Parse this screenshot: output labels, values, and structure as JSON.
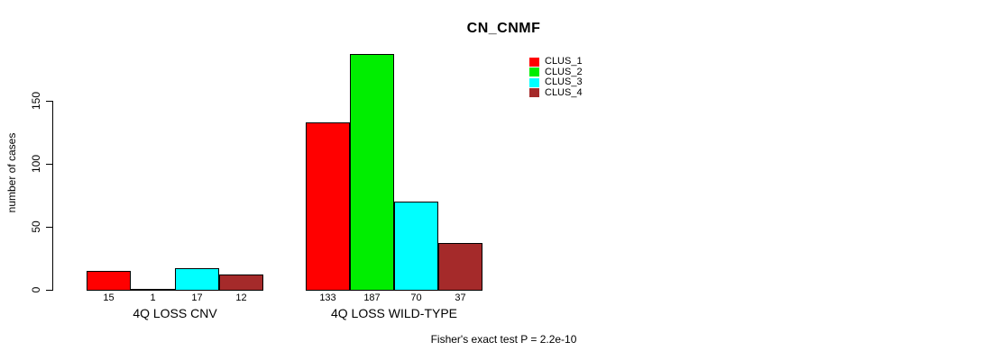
{
  "chart_data": {
    "type": "bar",
    "title": "CN_CNMF",
    "ylabel": "number of cases",
    "xlabel": "",
    "categories": [
      "4Q LOSS CNV",
      "4Q LOSS WILD-TYPE"
    ],
    "series": [
      {
        "name": "CLUS_1",
        "color": "#FF0000",
        "values": [
          15,
          133
        ]
      },
      {
        "name": "CLUS_2",
        "color": "#00EE00",
        "values": [
          1,
          187
        ]
      },
      {
        "name": "CLUS_3",
        "color": "#00FFFF",
        "values": [
          17,
          70
        ]
      },
      {
        "name": "CLUS_4",
        "color": "#A52A2A",
        "values": [
          12,
          37
        ]
      }
    ],
    "yticks": [
      0,
      50,
      100,
      150
    ],
    "ylim": [
      0,
      150
    ],
    "bar_value_labels_shown": true,
    "grid": false,
    "legend_position": "top-right",
    "annotation": "Fisher's exact test P = 2.2e-10",
    "axis_color": "#000000",
    "bar_border_color": "#000000",
    "background_color": "#FFFFFF"
  }
}
